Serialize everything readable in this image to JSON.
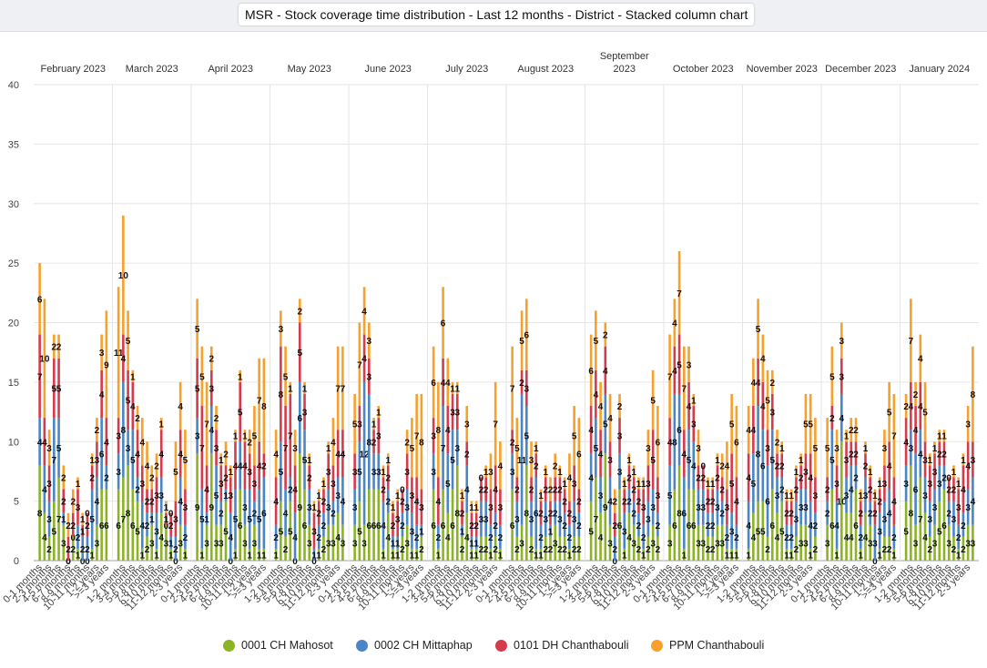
{
  "title": "MSR - Stock coverage time distribution - Last 12 months - District - Stacked column chart",
  "chart_data": {
    "type": "bar",
    "stacked": true,
    "ylim": [
      0,
      40
    ],
    "yticks": [
      0,
      5,
      10,
      15,
      20,
      25,
      30,
      35,
      40
    ],
    "grid": true,
    "legend_position": "bottom",
    "groups": [
      "February 2023",
      "March 2023",
      "April 2023",
      "May 2023",
      "June 2023",
      "July 2023",
      "August 2023",
      "September 2023",
      "October 2023",
      "November 2023",
      "December 2023",
      "January 2024"
    ],
    "categories": [
      "0-1 months",
      "1-2 months",
      "2-3 months",
      "3-4 months",
      "4-5 months",
      "5-6 months",
      "6-7 months",
      "7-8 months",
      "8-9 months",
      "9-10 months",
      "10-11 months",
      "11-12 months",
      "1-2 years",
      "2-3 years",
      ">=3 years"
    ],
    "series": [
      {
        "name": "0001 CH Mahosot",
        "color": "#8cb324",
        "values": [
          [
            8,
            4,
            2,
            5,
            7,
            3,
            0,
            2,
            1,
            0,
            0,
            1,
            3,
            6,
            6
          ],
          [
            6,
            7,
            8,
            6,
            5,
            1,
            2,
            3,
            1,
            4,
            3,
            1,
            0,
            3,
            1
          ],
          [
            9,
            1,
            3,
            9,
            3,
            3,
            5,
            0,
            1,
            6,
            3,
            1,
            3,
            1,
            1
          ],
          [
            1,
            5,
            2,
            5,
            0,
            9,
            6,
            3,
            0,
            1,
            2,
            3,
            3,
            4,
            3
          ],
          [
            3,
            5,
            3,
            6,
            6,
            6,
            1,
            4,
            1,
            1,
            2,
            3,
            1,
            1,
            2
          ],
          [
            6,
            1,
            6,
            4,
            6,
            8,
            2,
            4,
            1,
            1,
            2,
            2,
            1,
            2,
            1
          ],
          [
            6,
            2,
            3,
            8,
            2,
            1,
            1,
            2,
            2,
            3,
            2,
            2,
            1,
            2,
            2
          ],
          [
            5,
            7,
            4,
            9,
            3,
            0,
            6,
            1,
            4,
            3,
            2,
            1,
            2,
            3,
            2
          ],
          [
            3,
            6,
            8,
            1,
            6,
            6,
            3,
            3,
            2,
            2,
            3,
            3,
            1,
            1,
            1
          ],
          [
            1,
            4,
            5,
            5,
            2,
            6,
            4,
            5,
            1,
            1,
            2,
            3,
            3,
            1,
            2
          ],
          [
            3,
            6,
            1,
            10,
            4,
            4,
            6,
            1,
            4,
            3,
            0,
            1,
            2,
            2,
            1
          ],
          [
            5,
            8,
            3,
            7,
            4,
            2,
            3,
            5,
            6,
            3,
            2,
            1,
            2,
            3,
            3
          ]
        ]
      },
      {
        "name": "0002 CH Mittaphap",
        "color": "#4a86c5",
        "values": [
          [
            4,
            4,
            3,
            7,
            5,
            1,
            0,
            0,
            2,
            2,
            2,
            5,
            4,
            6,
            2
          ],
          [
            3,
            8,
            3,
            5,
            2,
            4,
            2,
            1,
            3,
            3,
            0,
            1,
            2,
            4,
            2
          ],
          [
            3,
            5,
            1,
            4,
            5,
            2,
            1,
            4,
            5,
            4,
            3,
            5,
            2,
            5,
            6
          ],
          [
            2,
            5,
            4,
            2,
            4,
            6,
            5,
            3,
            1,
            2,
            2,
            3,
            2,
            3,
            4
          ],
          [
            3,
            5,
            12,
            8,
            3,
            3,
            4,
            2,
            1,
            1,
            2,
            3,
            3,
            2,
            1
          ],
          [
            3,
            2,
            7,
            5,
            5,
            3,
            1,
            4,
            1,
            1,
            3,
            3,
            2,
            2,
            2
          ],
          [
            3,
            3,
            11,
            5,
            3,
            6,
            2,
            3,
            1,
            2,
            3,
            2,
            2,
            3,
            2
          ],
          [
            4,
            5,
            3,
            5,
            4,
            2,
            3,
            3,
            2,
            2,
            2,
            2,
            3,
            3,
            2
          ],
          [
            5,
            8,
            6,
            6,
            5,
            4,
            3,
            3,
            2,
            2,
            3,
            2,
            2,
            3,
            2
          ],
          [
            4,
            5,
            8,
            6,
            6,
            5,
            3,
            2,
            2,
            2,
            3,
            3,
            3,
            4,
            2
          ],
          [
            2,
            5,
            4,
            4,
            3,
            4,
            2,
            2,
            3,
            2,
            3,
            3,
            3,
            4,
            2
          ],
          [
            3,
            3,
            6,
            4,
            3,
            3,
            3,
            3,
            2,
            2,
            3,
            2,
            2,
            3,
            4
          ]
        ]
      },
      {
        "name": "0101 DH Chanthabouli",
        "color": "#d63b4c",
        "values": [
          [
            7,
            4,
            3,
            5,
            5,
            2,
            2,
            2,
            3,
            1,
            2,
            2,
            3,
            4,
            4
          ],
          [
            3,
            4,
            5,
            4,
            4,
            3,
            2,
            2,
            3,
            4,
            1,
            2,
            3,
            4,
            3
          ],
          [
            5,
            7,
            4,
            3,
            3,
            3,
            2,
            3,
            4,
            5,
            4,
            3,
            3,
            4,
            2
          ],
          [
            4,
            8,
            7,
            7,
            4,
            5,
            3,
            2,
            3,
            2,
            2,
            3,
            3,
            4,
            4
          ],
          [
            3,
            3,
            4,
            3,
            2,
            3,
            2,
            2,
            2,
            3,
            2,
            3,
            3,
            4,
            3
          ],
          [
            3,
            4,
            4,
            4,
            3,
            3,
            2,
            2,
            2,
            2,
            2,
            2,
            3,
            4,
            3
          ],
          [
            2,
            2,
            2,
            3,
            2,
            2,
            2,
            2,
            2,
            2,
            2,
            2,
            2,
            3,
            2
          ],
          [
            4,
            4,
            4,
            4,
            3,
            2,
            3,
            2,
            2,
            2,
            2,
            3,
            3,
            5,
            3
          ],
          [
            4,
            4,
            5,
            4,
            4,
            3,
            2,
            2,
            2,
            2,
            2,
            2,
            3,
            5,
            4
          ],
          [
            4,
            4,
            4,
            4,
            3,
            3,
            2,
            2,
            2,
            2,
            2,
            2,
            3,
            4,
            3
          ],
          [
            2,
            2,
            3,
            3,
            3,
            2,
            2,
            2,
            2,
            2,
            2,
            2,
            3,
            4,
            4
          ],
          [
            4,
            4,
            4,
            4,
            3,
            3,
            3,
            2,
            2,
            2,
            2,
            3,
            4,
            4,
            3
          ]
        ]
      },
      {
        "name": "PPM Chanthabouli",
        "color": "#f7a02c",
        "values": [
          [
            6,
            10,
            3,
            2,
            2,
            2,
            2,
            2,
            1,
            1,
            0,
            1,
            2,
            3,
            9
          ],
          [
            11,
            10,
            5,
            1,
            2,
            4,
            4,
            2,
            2,
            1,
            1,
            0,
            5,
            4,
            5
          ],
          [
            5,
            5,
            7,
            2,
            2,
            1,
            2,
            1,
            1,
            1,
            1,
            2,
            5,
            7,
            8
          ],
          [
            4,
            3,
            5,
            1,
            3,
            2,
            1,
            1,
            1,
            1,
            1,
            1,
            4,
            7,
            7
          ],
          [
            5,
            7,
            4,
            3,
            1,
            1,
            1,
            1,
            1,
            1,
            0,
            2,
            5,
            7,
            8
          ],
          [
            6,
            8,
            6,
            4,
            1,
            1,
            1,
            3,
            1,
            1,
            0,
            1,
            3,
            7,
            4
          ],
          [
            7,
            5,
            5,
            6,
            3,
            1,
            1,
            1,
            2,
            2,
            1,
            1,
            4,
            5,
            6
          ],
          [
            6,
            5,
            4,
            2,
            4,
            2,
            2,
            1,
            1,
            1,
            1,
            1,
            3,
            5,
            6
          ],
          [
            7,
            4,
            7,
            7,
            3,
            1,
            3,
            0,
            1,
            1,
            1,
            2,
            4,
            5,
            6
          ],
          [
            4,
            4,
            5,
            4,
            5,
            2,
            2,
            1,
            1,
            1,
            1,
            1,
            5,
            5,
            5
          ],
          [
            5,
            5,
            3,
            3,
            1,
            2,
            2,
            1,
            1,
            1,
            1,
            1,
            3,
            5,
            7
          ],
          [
            2,
            7,
            2,
            4,
            5,
            1,
            1,
            1,
            1,
            0,
            1,
            1,
            1,
            3,
            8
          ]
        ]
      }
    ]
  },
  "legend": [
    {
      "label": "0001 CH Mahosot",
      "color": "#8cb324"
    },
    {
      "label": "0002 CH Mittaphap",
      "color": "#4a86c5"
    },
    {
      "label": "0101 DH Chanthabouli",
      "color": "#d63b4c"
    },
    {
      "label": "PPM Chanthabouli",
      "color": "#f7a02c"
    }
  ]
}
